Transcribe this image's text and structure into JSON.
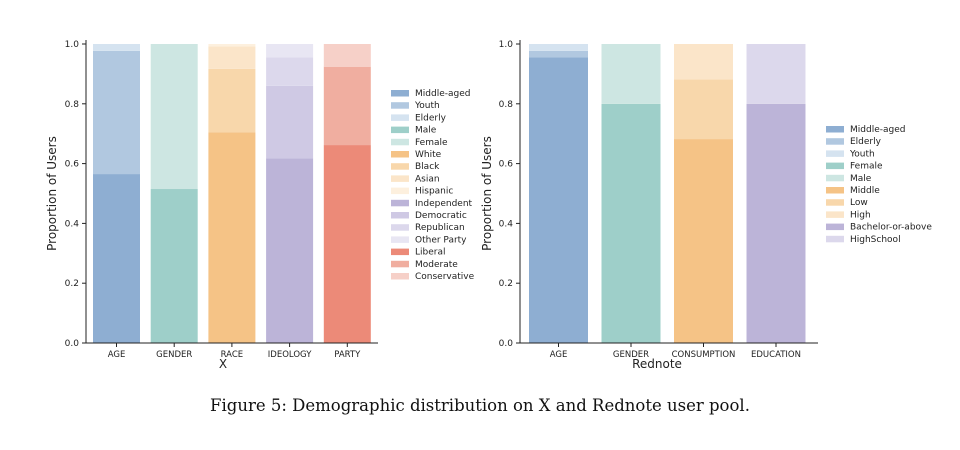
{
  "caption": "Figure 5: Demographic distribution on X and Rednote user pool.",
  "chart_data": [
    {
      "type": "bar",
      "stacked": true,
      "title": "",
      "xlabel": "X",
      "ylabel": "Proportion of Users",
      "ylim": [
        0,
        1.0
      ],
      "yticks": [
        "0.0",
        "0.2",
        "0.4",
        "0.6",
        "0.8",
        "1.0"
      ],
      "legend_position": "right",
      "categories": [
        "AGE",
        "GENDER",
        "RACE",
        "IDEOLOGY",
        "PARTY"
      ],
      "segments": [
        [
          {
            "name": "Middle-aged",
            "value": 0.565,
            "color": "#8eaed2"
          },
          {
            "name": "Youth",
            "value": 0.412,
            "color": "#b1c8e0"
          },
          {
            "name": "Elderly",
            "value": 0.023,
            "color": "#d5e3f0"
          }
        ],
        [
          {
            "name": "Male",
            "value": 0.515,
            "color": "#9ecfc9"
          },
          {
            "name": "Female",
            "value": 0.485,
            "color": "#cde6e2"
          }
        ],
        [
          {
            "name": "White",
            "value": 0.705,
            "color": "#f5c386"
          },
          {
            "name": "Black",
            "value": 0.212,
            "color": "#f8d7ab"
          },
          {
            "name": "Asian",
            "value": 0.075,
            "color": "#fbe5c9"
          },
          {
            "name": "Hispanic",
            "value": 0.008,
            "color": "#fdf0de"
          }
        ],
        [
          {
            "name": "Independent",
            "value": 0.618,
            "color": "#bcb4d8"
          },
          {
            "name": "Democratic",
            "value": 0.242,
            "color": "#cfc9e4"
          },
          {
            "name": "Republican",
            "value": 0.095,
            "color": "#dcd8ec"
          },
          {
            "name": "Other Party",
            "value": 0.045,
            "color": "#e8e6f3"
          }
        ],
        [
          {
            "name": "Liberal",
            "value": 0.662,
            "color": "#ec8a78"
          },
          {
            "name": "Moderate",
            "value": 0.262,
            "color": "#f0aea0"
          },
          {
            "name": "Conservative",
            "value": 0.076,
            "color": "#f6d0c8"
          }
        ]
      ],
      "legend": [
        {
          "label": "Middle-aged",
          "color": "#8eaed2"
        },
        {
          "label": "Youth",
          "color": "#b1c8e0"
        },
        {
          "label": "Elderly",
          "color": "#d5e3f0"
        },
        {
          "label": "Male",
          "color": "#9ecfc9"
        },
        {
          "label": "Female",
          "color": "#cde6e2"
        },
        {
          "label": "White",
          "color": "#f5c386"
        },
        {
          "label": "Black",
          "color": "#f8d7ab"
        },
        {
          "label": "Asian",
          "color": "#fbe5c9"
        },
        {
          "label": "Hispanic",
          "color": "#fdf0de"
        },
        {
          "label": "Independent",
          "color": "#bcb4d8"
        },
        {
          "label": "Democratic",
          "color": "#cfc9e4"
        },
        {
          "label": "Republican",
          "color": "#dcd8ec"
        },
        {
          "label": "Other Party",
          "color": "#e8e6f3"
        },
        {
          "label": "Liberal",
          "color": "#ec8a78"
        },
        {
          "label": "Moderate",
          "color": "#f0aea0"
        },
        {
          "label": "Conservative",
          "color": "#f6d0c8"
        }
      ]
    },
    {
      "type": "bar",
      "stacked": true,
      "title": "",
      "xlabel": "Rednote",
      "ylabel": "Proportion of Users",
      "ylim": [
        0,
        1.0
      ],
      "yticks": [
        "0.0",
        "0.2",
        "0.4",
        "0.6",
        "0.8",
        "1.0"
      ],
      "legend_position": "right",
      "categories": [
        "AGE",
        "GENDER",
        "CONSUMPTION",
        "EDUCATION"
      ],
      "segments": [
        [
          {
            "name": "Middle-aged",
            "value": 0.955,
            "color": "#8eaed2"
          },
          {
            "name": "Elderly",
            "value": 0.022,
            "color": "#b1c8e0"
          },
          {
            "name": "Youth",
            "value": 0.023,
            "color": "#d5e3f0"
          }
        ],
        [
          {
            "name": "Female",
            "value": 0.8,
            "color": "#9ecfc9"
          },
          {
            "name": "Male",
            "value": 0.2,
            "color": "#cde6e2"
          }
        ],
        [
          {
            "name": "Middle",
            "value": 0.682,
            "color": "#f5c386"
          },
          {
            "name": "Low",
            "value": 0.2,
            "color": "#f8d7ab"
          },
          {
            "name": "High",
            "value": 0.118,
            "color": "#fbe5c9"
          }
        ],
        [
          {
            "name": "Bachelor-or-above",
            "value": 0.8,
            "color": "#bcb4d8"
          },
          {
            "name": "HighSchool",
            "value": 0.2,
            "color": "#dcd8ec"
          }
        ]
      ],
      "legend": [
        {
          "label": "Middle-aged",
          "color": "#8eaed2"
        },
        {
          "label": "Elderly",
          "color": "#b1c8e0"
        },
        {
          "label": "Youth",
          "color": "#d5e3f0"
        },
        {
          "label": "Female",
          "color": "#9ecfc9"
        },
        {
          "label": "Male",
          "color": "#cde6e2"
        },
        {
          "label": "Middle",
          "color": "#f5c386"
        },
        {
          "label": "Low",
          "color": "#f8d7ab"
        },
        {
          "label": "High",
          "color": "#fbe5c9"
        },
        {
          "label": "Bachelor-or-above",
          "color": "#bcb4d8"
        },
        {
          "label": "HighSchool",
          "color": "#dcd8ec"
        }
      ]
    }
  ]
}
